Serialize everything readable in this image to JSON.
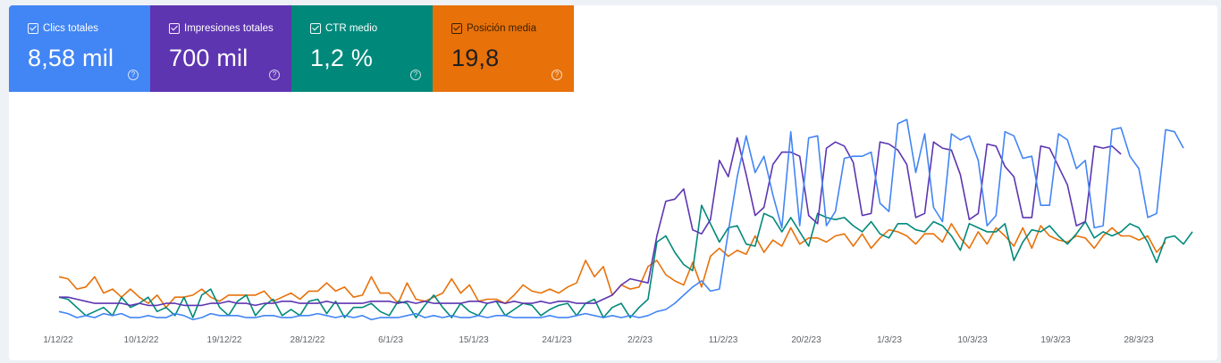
{
  "metrics": [
    {
      "label": "Clics totales",
      "value": "8,58 mil",
      "color": "#4285f4",
      "help": "?"
    },
    {
      "label": "Impresiones totales",
      "value": "700 mil",
      "color": "#5e35b1",
      "help": "?"
    },
    {
      "label": "CTR medio",
      "value": "1,2 %",
      "color": "#00897b",
      "help": "?"
    },
    {
      "label": "Posición media",
      "value": "19,8",
      "color": "#e8710a",
      "help": "?"
    }
  ],
  "chart_data": {
    "type": "line",
    "x_tick_labels": [
      "1/12/22",
      "10/12/22",
      "19/12/22",
      "28/12/22",
      "6/1/23",
      "15/1/23",
      "24/1/23",
      "2/2/23",
      "11/2/23",
      "20/2/23",
      "1/3/23",
      "10/3/23",
      "19/3/23",
      "28/3/23"
    ],
    "series": [
      {
        "name": "Clics totales",
        "color": "#4285f4",
        "values": [
          6,
          5,
          3,
          4,
          3,
          5,
          4,
          5,
          3,
          3,
          4,
          3,
          3,
          5,
          4,
          2,
          3,
          5,
          4,
          4,
          4,
          3,
          3,
          4,
          4,
          3,
          3,
          4,
          4,
          5,
          4,
          3,
          4,
          3,
          4,
          2,
          3,
          3,
          3,
          4,
          5,
          3,
          4,
          3,
          4,
          3,
          3,
          4,
          3,
          4,
          4,
          3,
          3,
          3,
          3,
          4,
          3,
          3,
          4,
          5,
          4,
          3,
          4,
          3,
          4,
          3,
          4,
          6,
          7,
          10,
          14,
          18,
          21,
          16,
          17,
          45,
          72,
          92,
          74,
          82,
          63,
          47,
          94,
          48,
          91,
          92,
          48,
          55,
          81,
          82,
          82,
          84,
          59,
          55,
          98,
          100,
          74,
          93,
          57,
          50,
          93,
          90,
          92,
          80,
          48,
          53,
          94,
          92,
          81,
          82,
          58,
          58,
          93,
          90,
          76,
          80,
          47,
          48,
          95,
          96,
          82,
          76,
          52,
          54,
          95,
          94,
          86
        ]
      },
      {
        "name": "Impresiones totales",
        "color": "#5e35b1",
        "values": [
          13,
          13,
          12,
          11,
          10,
          10,
          10,
          10,
          9,
          10,
          9,
          9,
          10,
          10,
          9,
          9,
          9,
          10,
          10,
          11,
          10,
          10,
          9,
          10,
          10,
          11,
          11,
          10,
          10,
          10,
          11,
          10,
          10,
          10,
          10,
          11,
          11,
          11,
          10,
          11,
          10,
          11,
          10,
          10,
          10,
          10,
          11,
          11,
          10,
          11,
          10,
          11,
          10,
          10,
          11,
          10,
          11,
          11,
          10,
          10,
          10,
          12,
          14,
          19,
          22,
          21,
          20,
          43,
          60,
          61,
          66,
          46,
          44,
          51,
          80,
          72,
          91,
          73,
          53,
          57,
          78,
          84,
          84,
          82,
          53,
          49,
          86,
          89,
          87,
          79,
          53,
          54,
          89,
          88,
          85,
          78,
          52,
          54,
          89,
          86,
          85,
          73,
          51,
          54,
          88,
          87,
          77,
          72,
          52,
          52,
          87,
          86,
          77,
          68,
          48,
          50,
          87,
          86,
          87,
          83
        ]
      },
      {
        "name": "CTR medio",
        "color": "#00897b",
        "values": [
          13,
          12,
          8,
          4,
          6,
          8,
          4,
          13,
          8,
          10,
          13,
          6,
          8,
          4,
          13,
          3,
          14,
          17,
          8,
          4,
          11,
          14,
          4,
          9,
          12,
          4,
          7,
          4,
          11,
          12,
          5,
          11,
          3,
          8,
          8,
          10,
          6,
          4,
          11,
          10,
          3,
          9,
          14,
          8,
          3,
          10,
          6,
          4,
          10,
          11,
          4,
          7,
          10,
          9,
          4,
          7,
          9,
          10,
          4,
          10,
          12,
          3,
          8,
          10,
          3,
          8,
          12,
          40,
          43,
          35,
          29,
          26,
          58,
          49,
          40,
          47,
          48,
          39,
          38,
          54,
          52,
          45,
          52,
          45,
          38,
          54,
          52,
          51,
          52,
          48,
          45,
          50,
          44,
          42,
          49,
          49,
          46,
          45,
          50,
          48,
          43,
          36,
          49,
          47,
          45,
          45,
          49,
          31,
          40,
          46,
          45,
          48,
          43,
          39,
          44,
          50,
          42,
          45,
          43,
          45,
          49,
          47,
          40,
          30,
          42,
          43,
          39,
          45
        ]
      },
      {
        "name": "Posición media",
        "color": "#e8710a",
        "values": [
          23,
          22,
          17,
          18,
          23,
          15,
          17,
          13,
          17,
          13,
          10,
          14,
          8,
          13,
          13,
          14,
          17,
          13,
          11,
          14,
          14,
          14,
          14,
          16,
          11,
          13,
          15,
          12,
          16,
          16,
          20,
          16,
          18,
          13,
          14,
          23,
          15,
          15,
          10,
          20,
          12,
          11,
          13,
          15,
          22,
          15,
          19,
          11,
          12,
          12,
          10,
          14,
          19,
          16,
          15,
          17,
          15,
          18,
          20,
          31,
          23,
          28,
          14,
          19,
          17,
          18,
          28,
          31,
          24,
          21,
          19,
          30,
          18,
          33,
          37,
          33,
          36,
          34,
          43,
          35,
          41,
          38,
          47,
          39,
          42,
          42,
          40,
          43,
          44,
          38,
          44,
          37,
          42,
          46,
          45,
          43,
          39,
          44,
          44,
          40,
          49,
          42,
          37,
          45,
          39,
          47,
          43,
          38,
          47,
          37,
          48,
          43,
          41,
          40,
          43,
          42,
          37,
          43,
          47,
          43,
          43,
          41,
          43,
          35,
          40
        ]
      }
    ]
  }
}
